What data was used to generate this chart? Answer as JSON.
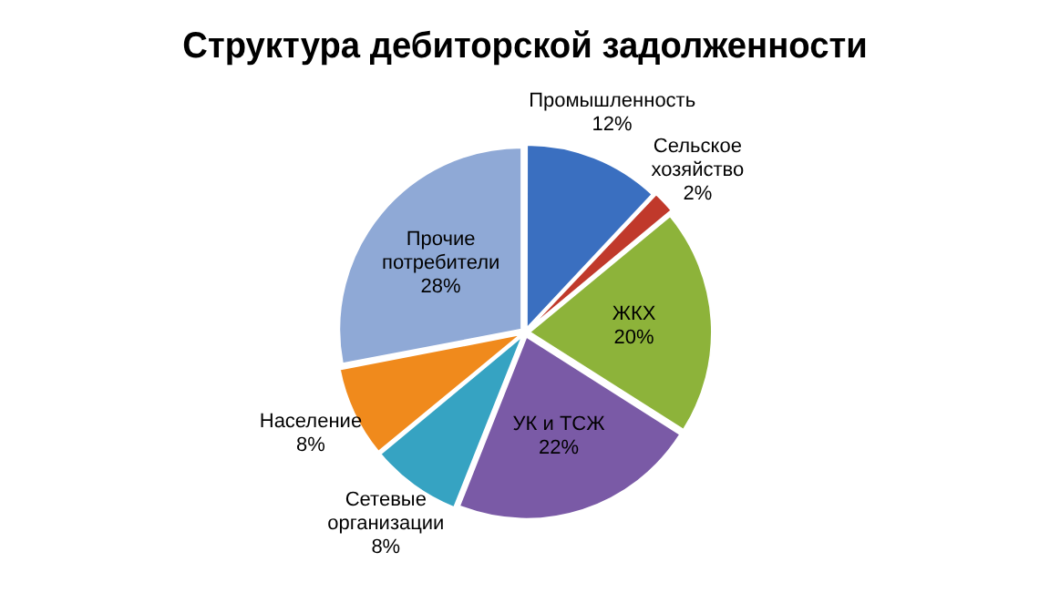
{
  "chart_data": {
    "type": "pie",
    "title": "Структура дебиторской задолженности",
    "categories": [
      "Промышленность",
      "Сельское хозяйство",
      "ЖКХ",
      "УК и ТСЖ",
      "Сетевые организации",
      "Население",
      "Прочие потребители"
    ],
    "values": [
      12,
      2,
      20,
      22,
      8,
      8,
      28
    ],
    "colors": [
      "#3a6fc0",
      "#c0392b",
      "#8db33a",
      "#7a5aa6",
      "#36a3c2",
      "#f08a1c",
      "#8fa9d6"
    ],
    "value_labels": [
      "12%",
      "2%",
      "20%",
      "22%",
      "8%",
      "8%",
      "28%"
    ],
    "legend": false
  }
}
